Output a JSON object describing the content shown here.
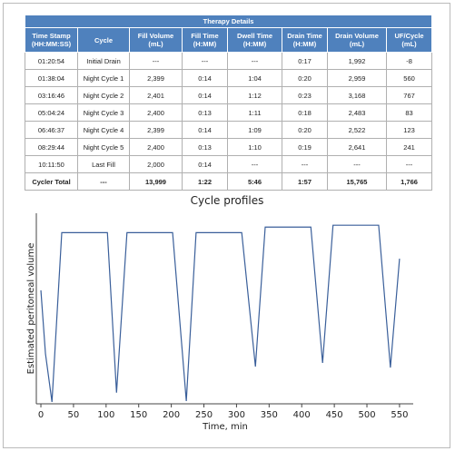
{
  "table": {
    "title": "Therapy Details",
    "columns": [
      [
        "Time Stamp",
        "(HH:MM:SS)"
      ],
      [
        "Cycle"
      ],
      [
        "Fill Volume",
        "(mL)"
      ],
      [
        "Fill Time",
        "(H:MM)"
      ],
      [
        "Dwell Time",
        "(H:MM)"
      ],
      [
        "Drain Time",
        "(H:MM)"
      ],
      [
        "Drain Volume",
        "(mL)"
      ],
      [
        "UF/Cycle",
        "(mL)"
      ]
    ],
    "rows": [
      [
        "01:20:54",
        "Initial Drain",
        "---",
        "---",
        "---",
        "0:17",
        "1,992",
        "-8"
      ],
      [
        "01:38:04",
        "Night Cycle 1",
        "2,399",
        "0:14",
        "1:04",
        "0:20",
        "2,959",
        "560"
      ],
      [
        "03:16:46",
        "Night Cycle 2",
        "2,401",
        "0:14",
        "1:12",
        "0:23",
        "3,168",
        "767"
      ],
      [
        "05:04:24",
        "Night Cycle 3",
        "2,400",
        "0:13",
        "1:11",
        "0:18",
        "2,483",
        "83"
      ],
      [
        "06:46:37",
        "Night Cycle 4",
        "2,399",
        "0:14",
        "1:09",
        "0:20",
        "2,522",
        "123"
      ],
      [
        "08:29:44",
        "Night Cycle 5",
        "2,400",
        "0:13",
        "1:10",
        "0:19",
        "2,641",
        "241"
      ],
      [
        "10:11:50",
        "Last Fill",
        "2,000",
        "0:14",
        "---",
        "---",
        "---",
        "---"
      ]
    ],
    "total": [
      "Cycler Total",
      "---",
      "13,999",
      "1:22",
      "5:46",
      "1:57",
      "15,765",
      "1,766"
    ]
  },
  "chart_data": {
    "type": "line",
    "title": "Cycle profiles",
    "x_label": "Time, min",
    "y_label": "Estimated peritoneal volume",
    "color": "#3a5f9a",
    "x": [
      0,
      7,
      17,
      32,
      102,
      116,
      132,
      202,
      223,
      238,
      308,
      329,
      344,
      414,
      432,
      448,
      518,
      536,
      550
    ],
    "values": [
      61,
      27,
      1,
      92,
      92,
      6,
      92,
      92,
      1.5,
      92,
      92,
      20,
      95,
      95,
      22,
      96,
      96,
      19.5,
      78
    ],
    "xlim": [
      -7,
      571
    ],
    "ylim": [
      0,
      100
    ],
    "xticks": [
      0,
      50,
      100,
      150,
      200,
      250,
      300,
      350,
      400,
      450,
      500,
      550
    ]
  }
}
